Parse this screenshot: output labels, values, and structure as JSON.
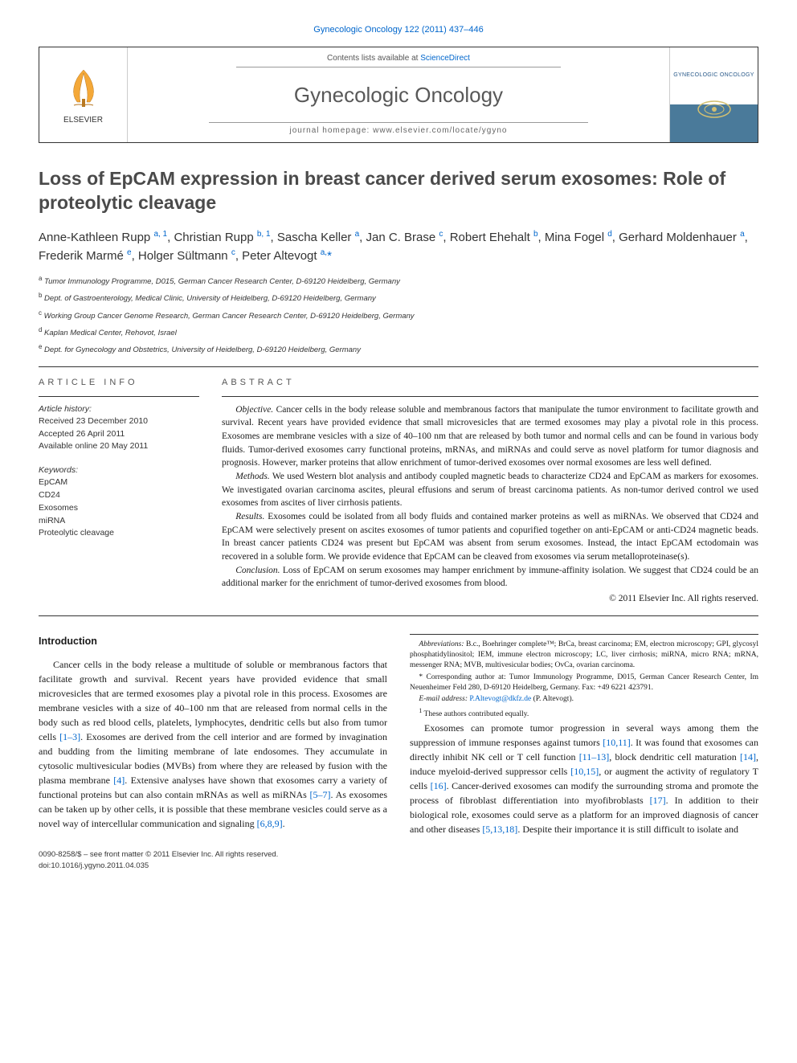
{
  "journal_ref": "Gynecologic Oncology 122 (2011) 437–446",
  "masthead": {
    "contents_prefix": "Contents lists available at ",
    "contents_link": "ScienceDirect",
    "journal_title": "Gynecologic Oncology",
    "homepage_prefix": "journal homepage: ",
    "homepage": "www.elsevier.com/locate/ygyno",
    "publisher": "ELSEVIER",
    "cover_text": "GYNECOLOGIC ONCOLOGY"
  },
  "article": {
    "title": "Loss of EpCAM expression in breast cancer derived serum exosomes: Role of proteolytic cleavage",
    "authors_html": "Anne-Kathleen Rupp <sup>a, 1</sup>, Christian Rupp <sup>b, 1</sup>, Sascha Keller <sup>a</sup>, Jan C. Brase <sup>c</sup>, Robert Ehehalt <sup>b</sup>, Mina Fogel <sup>d</sup>, Gerhard Moldenhauer <sup>a</sup>, Frederik Marmé <sup>e</sup>, Holger Sültmann <sup>c</sup>, Peter Altevogt <sup>a,</sup><span class='star'>*</span>"
  },
  "affiliations": [
    {
      "key": "a",
      "text": "Tumor Immunology Programme, D015, German Cancer Research Center, D-69120 Heidelberg, Germany"
    },
    {
      "key": "b",
      "text": "Dept. of Gastroenterology, Medical Clinic, University of Heidelberg, D-69120 Heidelberg, Germany"
    },
    {
      "key": "c",
      "text": "Working Group Cancer Genome Research, German Cancer Research Center, D-69120 Heidelberg, Germany"
    },
    {
      "key": "d",
      "text": "Kaplan Medical Center, Rehovot, Israel"
    },
    {
      "key": "e",
      "text": "Dept. for Gynecology and Obstetrics, University of Heidelberg, D-69120 Heidelberg, Germany"
    }
  ],
  "info": {
    "section_label": "ARTICLE INFO",
    "history_label": "Article history:",
    "history": [
      "Received 23 December 2010",
      "Accepted 26 April 2011",
      "Available online 20 May 2011"
    ],
    "keywords_label": "Keywords:",
    "keywords": [
      "EpCAM",
      "CD24",
      "Exosomes",
      "miRNA",
      "Proteolytic cleavage"
    ]
  },
  "abstract": {
    "section_label": "ABSTRACT",
    "objective_label": "Objective.",
    "objective": "Cancer cells in the body release soluble and membranous factors that manipulate the tumor environment to facilitate growth and survival. Recent years have provided evidence that small microvesicles that are termed exosomes may play a pivotal role in this process. Exosomes are membrane vesicles with a size of 40–100 nm that are released by both tumor and normal cells and can be found in various body fluids. Tumor-derived exosomes carry functional proteins, mRNAs, and miRNAs and could serve as novel platform for tumor diagnosis and prognosis. However, marker proteins that allow enrichment of tumor-derived exosomes over normal exosomes are less well defined.",
    "methods_label": "Methods.",
    "methods": "We used Western blot analysis and antibody coupled magnetic beads to characterize CD24 and EpCAM as markers for exosomes. We investigated ovarian carcinoma ascites, pleural effusions and serum of breast carcinoma patients. As non-tumor derived control we used exosomes from ascites of liver cirrhosis patients.",
    "results_label": "Results.",
    "results": "Exosomes could be isolated from all body fluids and contained marker proteins as well as miRNAs. We observed that CD24 and EpCAM were selectively present on ascites exosomes of tumor patients and copurified together on anti-EpCAM or anti-CD24 magnetic beads. In breast cancer patients CD24 was present but EpCAM was absent from serum exosomes. Instead, the intact EpCAM ectodomain was recovered in a soluble form. We provide evidence that EpCAM can be cleaved from exosomes via serum metalloproteinase(s).",
    "conclusion_label": "Conclusion.",
    "conclusion": "Loss of EpCAM on serum exosomes may hamper enrichment by immune-affinity isolation. We suggest that CD24 could be an additional marker for the enrichment of tumor-derived exosomes from blood.",
    "copyright": "© 2011 Elsevier Inc. All rights reserved."
  },
  "body": {
    "intro_heading": "Introduction",
    "p1_a": "Cancer cells in the body release a multitude of soluble or membranous factors that facilitate growth and survival. Recent years have provided evidence that small microvesicles that are termed exosomes play a pivotal role in this process. Exosomes are membrane vesicles with a size of 40–100 nm that are released from normal cells in the body such as red blood cells, platelets, lymphocytes, dendritic cells but also from tumor cells ",
    "p1_ref1": "[1–3]",
    "p1_b": ". Exosomes are derived from the cell interior and are formed by invagination and budding from the limiting membrane of late endosomes. They accumulate in cytosolic multivesicular bodies (MVBs) from where they are released by fusion with the plasma membrane ",
    "p1_ref2": "[4]",
    "p1_c": ". Extensive analyses have shown that exosomes carry a variety of functional proteins but can also contain mRNAs as well as miRNAs ",
    "p1_ref3": "[5–7]",
    "p1_d": ". As exosomes can be taken up by other cells, it is possible that these membrane vesicles could serve as a novel way of intercellular communication and signaling ",
    "p1_ref4": "[6,8,9]",
    "p1_e": ".",
    "p2_a": "Exosomes can promote tumor progression in several ways among them the suppression of immune responses against tumors ",
    "p2_ref1": "[10,11]",
    "p2_b": ". It was found that exosomes can directly inhibit NK cell or T cell function ",
    "p2_ref2": "[11–13]",
    "p2_c": ", block dendritic cell maturation ",
    "p2_ref3": "[14]",
    "p2_d": ", induce myeloid-derived suppressor cells ",
    "p2_ref4": "[10,15]",
    "p2_e": ", or augment the activity of regulatory T cells ",
    "p2_ref5": "[16]",
    "p2_f": ". Cancer-derived exosomes can modify the surrounding stroma and promote the process of fibroblast differentiation into myofibroblasts ",
    "p2_ref6": "[17]",
    "p2_g": ". In addition to their biological role, exosomes could serve as a platform for an improved diagnosis of cancer and other diseases ",
    "p2_ref7": "[5,13,18]",
    "p2_h": ". Despite their importance it is still difficult to isolate and"
  },
  "footnotes": {
    "abbrev_label": "Abbreviations:",
    "abbrev": " B.c., Boehringer complete™; BrCa, breast carcinoma; EM, electron microscopy; GPI, glycosyl phosphatidylinositol; IEM, immune electron microscopy; LC, liver cirrhosis; miRNA, micro RNA; mRNA, messenger RNA; MVB, multivesicular bodies; OvCa, ovarian carcinoma.",
    "corr_marker": "*",
    "corr": " Corresponding author at: Tumor Immunology Programme, D015, German Cancer Research Center, Im Neuenheimer Feld 280, D-69120 Heidelberg, Germany. Fax: +49 6221 423791.",
    "email_label": "E-mail address:",
    "email": "P.Altevogt@dkfz.de",
    "email_who": " (P. Altevogt).",
    "note1_marker": "1",
    "note1": " These authors contributed equally."
  },
  "footer": {
    "line1": "0090-8258/$ – see front matter © 2011 Elsevier Inc. All rights reserved.",
    "line2": "doi:10.1016/j.ygyno.2011.04.035"
  },
  "colors": {
    "link": "#0066cc",
    "text": "#1a1a1a",
    "heading_gray": "#4a4a4a"
  }
}
